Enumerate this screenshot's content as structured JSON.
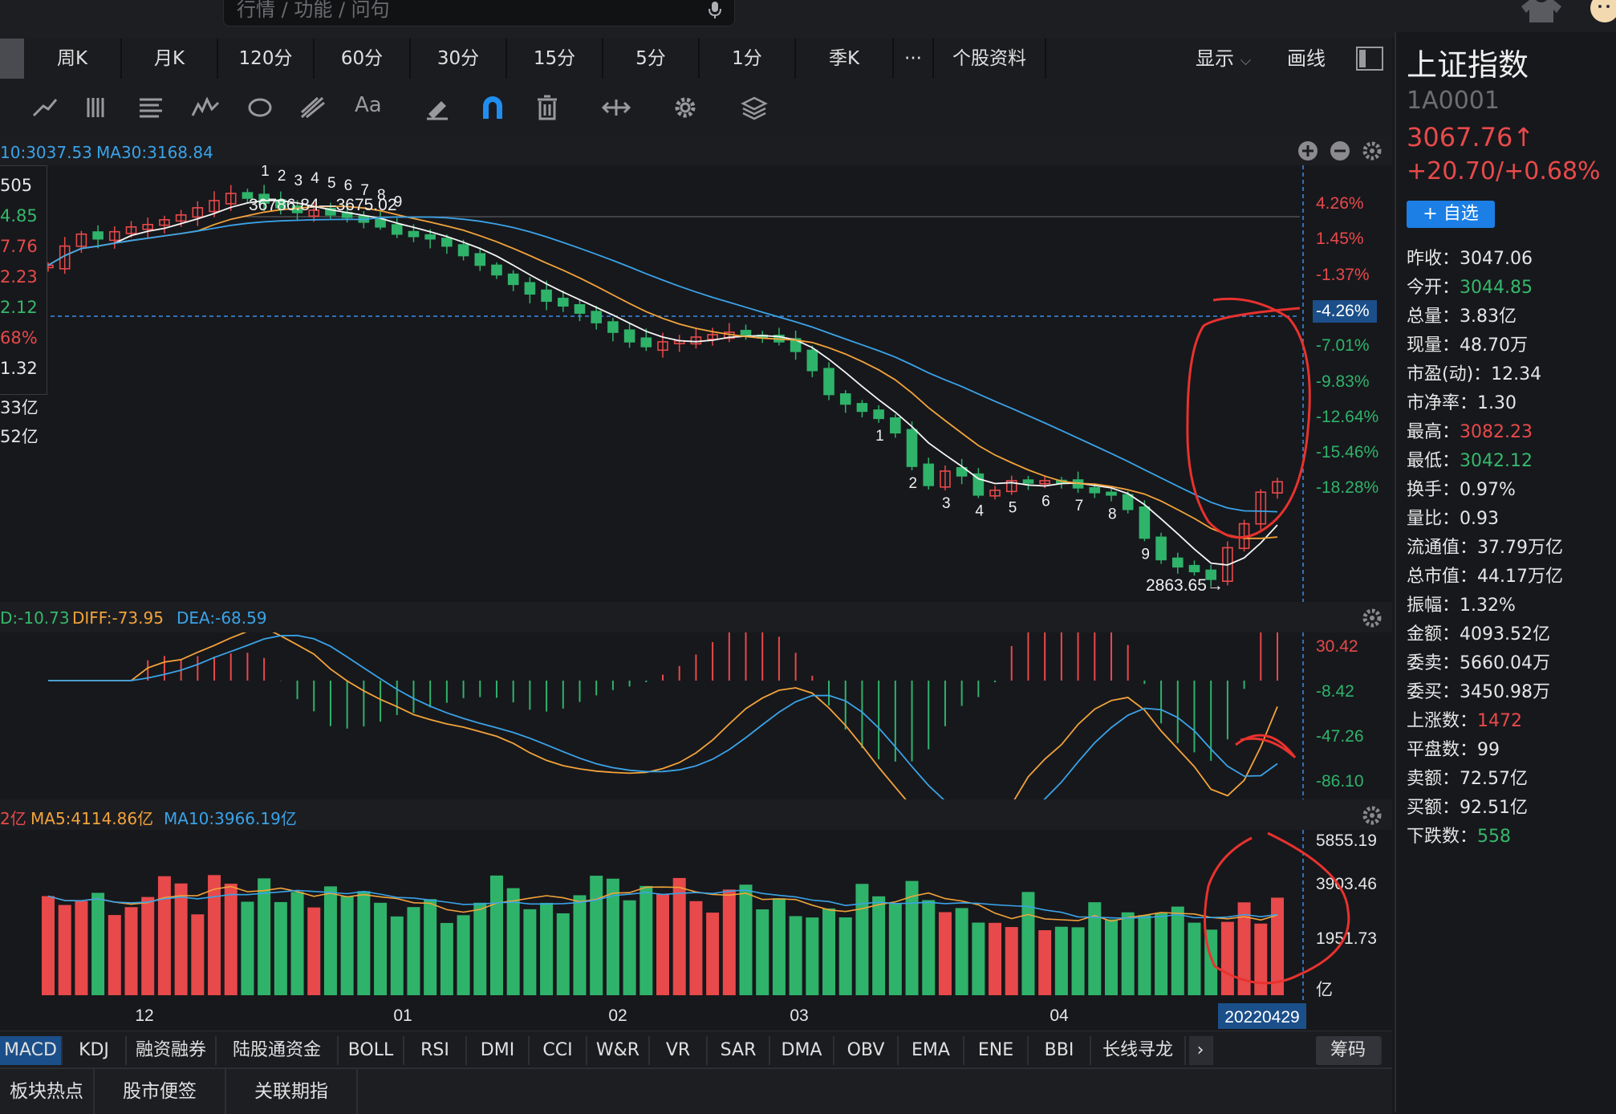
{
  "search": {
    "placeholder": "行情 / 功能 / 问句"
  },
  "icons": {
    "mic": "mic-icon",
    "shirt": "shirt-icon",
    "avatar": "avatar-icon"
  },
  "period_tabs": [
    "周K",
    "月K",
    "120分",
    "60分",
    "30分",
    "15分",
    "5分",
    "1分",
    "季K",
    "···",
    "个股资料"
  ],
  "toolbar_right": {
    "display": "显示",
    "draw": "画线"
  },
  "kline": {
    "ma_text": {
      "ma10": "10:3037.53",
      "ma30": "MA30:3168.84"
    },
    "left_labels": [
      "505",
      "4.85",
      "7.76",
      "2.23",
      "2.12",
      "68%",
      "1.32",
      "33亿",
      "52亿"
    ],
    "high_marker": "36786.84—3675.02",
    "low_marker": "2863.65→",
    "td_top": [
      "1",
      "2",
      "3",
      "4",
      "5",
      "6",
      "7",
      "8",
      "9"
    ],
    "td_bottom": [
      "1",
      "2",
      "3",
      "4",
      "5",
      "6",
      "7",
      "8",
      "9"
    ],
    "pct_axis": [
      "4.26%",
      "1.45%",
      "-1.37%",
      "-4.26%",
      "-7.01%",
      "-9.83%",
      "-12.64%",
      "-15.46%",
      "-18.28%"
    ]
  },
  "macd": {
    "macd_label": "D:-10.73",
    "diff_label": "DIFF:-73.95",
    "dea_label": "DEA:-68.59",
    "axis": [
      "30.42",
      "-8.42",
      "-47.26",
      "-86.10"
    ]
  },
  "volume": {
    "v_label": "2亿",
    "ma5_label": "MA5:4114.86亿",
    "ma10_label": "MA10:3966.19亿",
    "axis": [
      "5855.19",
      "3903.46",
      "1951.73",
      "亿"
    ]
  },
  "date_axis": [
    "12",
    "01",
    "02",
    "03",
    "04"
  ],
  "current_date": "20220429",
  "indicator_tabs": [
    "MACD",
    "KDJ",
    "融资融券",
    "陆股通资金",
    "BOLL",
    "RSI",
    "DMI",
    "CCI",
    "W&R",
    "VR",
    "SAR",
    "DMA",
    "OBV",
    "EMA",
    "ENE",
    "BBI",
    "长线寻龙"
  ],
  "chip_button": "筹码",
  "footer_tabs": [
    "板块热点",
    "股市便签",
    "关联期指"
  ],
  "info": {
    "name": "上证指数",
    "code": "1A0001",
    "price": "3067.76↑",
    "change": "+20.70/+0.68%",
    "add_button": "+ 自选",
    "rows": [
      {
        "k": "昨收：",
        "v": "3047.06",
        "c": "w"
      },
      {
        "k": "今开：",
        "v": "3044.85",
        "c": "g"
      },
      {
        "k": "总量：",
        "v": "3.83亿",
        "c": "w"
      },
      {
        "k": "现量：",
        "v": "48.70万",
        "c": "w"
      },
      {
        "k": "市盈(动)：",
        "v": "12.34",
        "c": "w"
      },
      {
        "k": "市净率：",
        "v": "1.30",
        "c": "w"
      },
      {
        "k": "最高：",
        "v": "3082.23",
        "c": "r"
      },
      {
        "k": "最低：",
        "v": "3042.12",
        "c": "g"
      },
      {
        "k": "换手：",
        "v": "0.97%",
        "c": "w"
      },
      {
        "k": "量比：",
        "v": "0.93",
        "c": "w"
      },
      {
        "k": "流通值：",
        "v": "37.79万亿",
        "c": "w"
      },
      {
        "k": "总市值：",
        "v": "44.17万亿",
        "c": "w"
      },
      {
        "k": "振幅：",
        "v": "1.32%",
        "c": "w"
      },
      {
        "k": "金额：",
        "v": "4093.52亿",
        "c": "w"
      },
      {
        "k": "委卖：",
        "v": "5660.04万",
        "c": "w"
      },
      {
        "k": "委买：",
        "v": "3450.98万",
        "c": "w"
      },
      {
        "k": "上涨数：",
        "v": "1472",
        "c": "r"
      },
      {
        "k": "平盘数：",
        "v": "99",
        "c": "w"
      },
      {
        "k": "卖额：",
        "v": "72.57亿",
        "c": "w"
      },
      {
        "k": "买额：",
        "v": "92.51亿",
        "c": "w"
      },
      {
        "k": "下跌数：",
        "v": "558",
        "c": "g"
      }
    ]
  },
  "colors": {
    "up": "#e8494a",
    "down": "#2fb36a",
    "ma5": "#f5f5f5",
    "ma10": "#f3a33a",
    "ma20": "#3aa3e8",
    "accent": "#1b7fe5",
    "annotation": "#e8322e"
  },
  "chart_data": {
    "type": "candlestick",
    "x_ticks": [
      "12",
      "01",
      "02",
      "03",
      "04"
    ],
    "last_date": "20220429",
    "close_series": [
      3520,
      3560,
      3585,
      3575,
      3590,
      3600,
      3605,
      3615,
      3625,
      3640,
      3655,
      3670,
      3660,
      3650,
      3640,
      3630,
      3635,
      3625,
      3620,
      3610,
      3600,
      3585,
      3580,
      3575,
      3560,
      3540,
      3520,
      3500,
      3480,
      3460,
      3445,
      3435,
      3420,
      3400,
      3380,
      3360,
      3350,
      3360,
      3362,
      3370,
      3375,
      3380,
      3372,
      3368,
      3360,
      3340,
      3300,
      3250,
      3230,
      3215,
      3200,
      3170,
      3100,
      3060,
      3090,
      3080,
      3040,
      3050,
      3070,
      3065,
      3070,
      3065,
      3055,
      3045,
      3040,
      3010,
      2950,
      2905,
      2890,
      2880,
      2864,
      2930,
      2980,
      3046,
      3067.76
    ],
    "pct_axis": [
      4.26,
      1.45,
      -1.37,
      -4.26,
      -7.01,
      -9.83,
      -12.64,
      -15.46,
      -18.28
    ],
    "high_label": 3675.02,
    "low_label": 2863.65,
    "macd_axis": [
      30.42,
      -8.42,
      -47.26,
      -86.1
    ],
    "volume_axis": [
      5855.19,
      3903.46,
      1951.73
    ]
  }
}
